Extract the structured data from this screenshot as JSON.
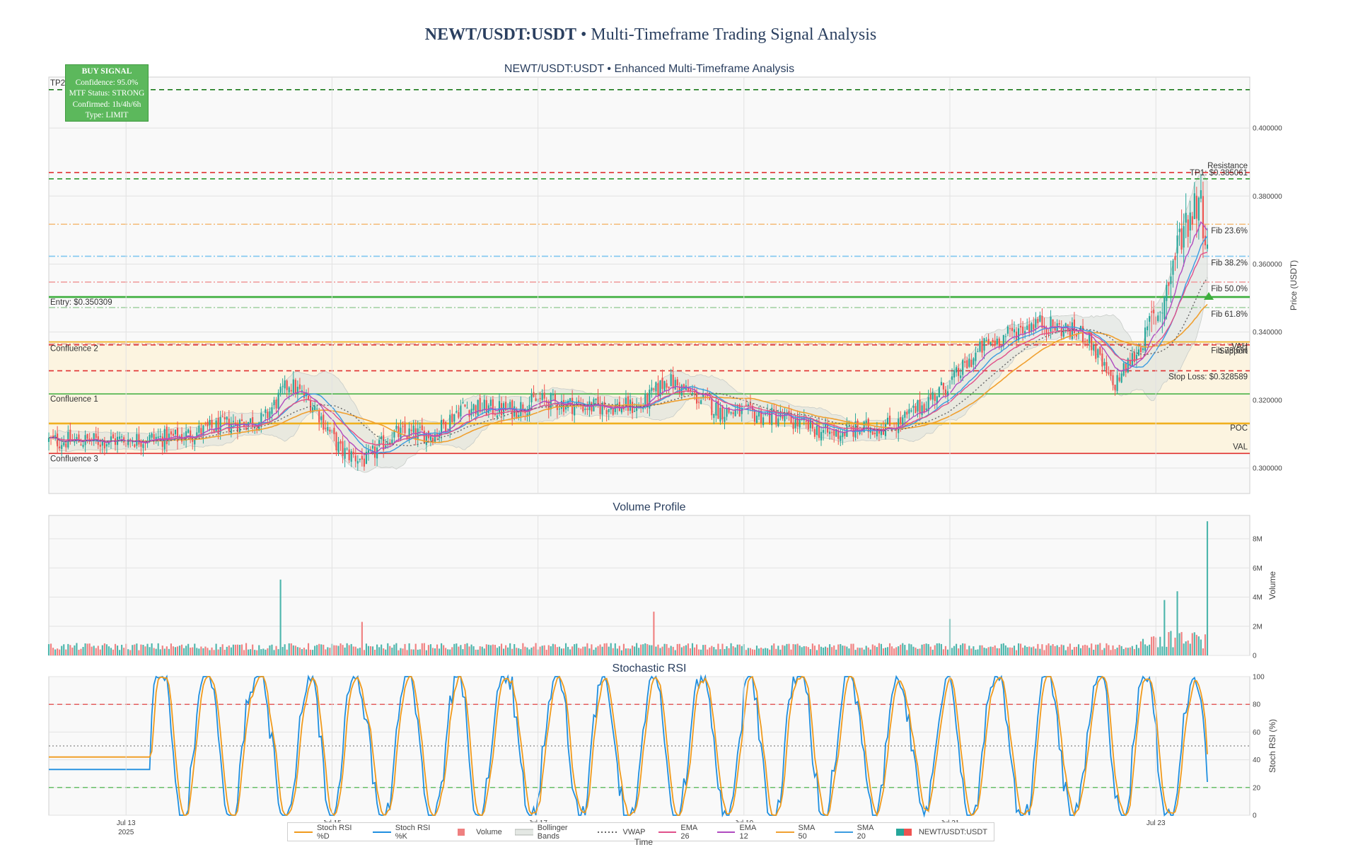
{
  "page": {
    "title_bold": "NEWT/USDT:USDT",
    "title_rest": " • Multi-Timeframe Trading Signal Analysis"
  },
  "signal_box": {
    "heading": "BUY SIGNAL",
    "lines": [
      "Confidence: 95.0%",
      "MTF Status: STRONG",
      "Confirmed: 1h/4h/6h",
      "Type: LIMIT"
    ]
  },
  "x_axis": {
    "title": "Time",
    "ticks": [
      "Jul 13",
      "Jul 15",
      "Jul 17",
      "Jul 19",
      "Jul 21",
      "Jul 23"
    ],
    "year_label": "2025"
  },
  "colors": {
    "up": "#26a69a",
    "down": "#ef5350",
    "sma20": "#3a9be0",
    "sma50": "#f0a030",
    "ema12": "#b04ac0",
    "ema26": "#e0508a",
    "vwap": "#666666",
    "bb": "#c8ccc8",
    "stoch_k": "#1f8fe0",
    "stoch_d": "#f09a1c"
  },
  "legend": [
    "Stoch RSI %D",
    "Stoch RSI %K",
    "Volume",
    "Bollinger Bands",
    "VWAP",
    "EMA 26",
    "EMA 12",
    "SMA 50",
    "SMA 20",
    "NEWT/USDT:USDT"
  ],
  "chart_data": [
    {
      "type": "candlestick",
      "title": "NEWT/USDT:USDT • Enhanced Multi-Timeframe Analysis",
      "ylabel": "Price (USDT)",
      "ylim": [
        0.2925,
        0.415
      ],
      "yticks": [
        "0.300000",
        "0.320000",
        "0.340000",
        "0.360000",
        "0.380000",
        "0.400000"
      ],
      "x_range": [
        "2025-07-12 06:00",
        "2025-07-23 12:00"
      ],
      "price_path": [
        [
          "2025-07-12 06:00",
          0.308
        ],
        [
          "2025-07-12 18:00",
          0.308
        ],
        [
          "2025-07-13 12:00",
          0.309
        ],
        [
          "2025-07-14 00:00",
          0.313
        ],
        [
          "2025-07-14 08:00",
          0.314
        ],
        [
          "2025-07-14 14:00",
          0.325
        ],
        [
          "2025-07-14 20:00",
          0.318
        ],
        [
          "2025-07-15 02:00",
          0.305
        ],
        [
          "2025-07-15 08:00",
          0.302
        ],
        [
          "2025-07-15 14:00",
          0.31
        ],
        [
          "2025-07-16 00:00",
          0.31
        ],
        [
          "2025-07-16 06:00",
          0.318
        ],
        [
          "2025-07-16 18:00",
          0.317
        ],
        [
          "2025-07-17 00:00",
          0.32
        ],
        [
          "2025-07-17 12:00",
          0.318
        ],
        [
          "2025-07-18 00:00",
          0.318
        ],
        [
          "2025-07-18 06:00",
          0.326
        ],
        [
          "2025-07-18 18:00",
          0.317
        ],
        [
          "2025-07-19 08:00",
          0.315
        ],
        [
          "2025-07-19 20:00",
          0.31
        ],
        [
          "2025-07-20 12:00",
          0.313
        ],
        [
          "2025-07-21 00:00",
          0.325
        ],
        [
          "2025-07-21 08:00",
          0.336
        ],
        [
          "2025-07-21 20:00",
          0.343
        ],
        [
          "2025-07-22 08:00",
          0.339
        ],
        [
          "2025-07-22 14:00",
          0.324
        ],
        [
          "2025-07-22 20:00",
          0.335
        ],
        [
          "2025-07-23 02:00",
          0.35
        ],
        [
          "2025-07-23 06:00",
          0.37
        ],
        [
          "2025-07-23 10:00",
          0.38
        ],
        [
          "2025-07-23 12:00",
          0.368
        ]
      ],
      "levels": [
        {
          "name": "TP2",
          "value": 0.4113,
          "color": "#1a7a1a",
          "style": "dash"
        },
        {
          "name": "Resistance",
          "value": 0.3869,
          "color": "#e03030",
          "style": "dash"
        },
        {
          "name": "TP1: $0.385061",
          "value": 0.385061,
          "color": "#2a9a2a",
          "style": "dash"
        },
        {
          "name": "Fib 23.6%",
          "value": 0.3717,
          "color": "#f5c080",
          "style": "dashdot"
        },
        {
          "name": "Fib 38.2%",
          "value": 0.3623,
          "color": "#80c8f0",
          "style": "dashdot"
        },
        {
          "name": "Fib 50.0%",
          "value": 0.3547,
          "color": "#f0a0a0",
          "style": "dashdot"
        },
        {
          "name": "Entry: $0.350309",
          "value": 0.350309,
          "color": "#3cae3c",
          "style": "solid"
        },
        {
          "name": "Fib 61.8%",
          "value": 0.3472,
          "color": "#a0d0a0",
          "style": "dashdot"
        },
        {
          "name": "Fib 78.6%",
          "value": 0.3365,
          "color": "#e0a0a0",
          "style": "dashdot"
        },
        {
          "name": "VAH",
          "value": 0.3371,
          "color": "#f0b020",
          "style": "solid"
        },
        {
          "name": "Support",
          "value": 0.3362,
          "color": "#e03030",
          "style": "dash"
        },
        {
          "name": "Stop Loss: $0.328589",
          "value": 0.328589,
          "color": "#e03030",
          "style": "dash"
        },
        {
          "name": "Confluence 1",
          "value": 0.3218,
          "color": "#3cae3c",
          "style": "solid"
        },
        {
          "name": "POC",
          "value": 0.3131,
          "color": "#f0b020",
          "style": "solid"
        },
        {
          "name": "VAL",
          "value": 0.3043,
          "color": "#e03030",
          "style": "solid"
        }
      ],
      "zone_labels": [
        "Confluence 2",
        "Confluence 3"
      ]
    },
    {
      "type": "bar",
      "title": "Volume Profile",
      "ylabel": "Volume",
      "ylim": [
        0,
        9600000
      ],
      "yticks": [
        "0",
        "2M",
        "4M",
        "6M",
        "8M"
      ],
      "spikes": [
        [
          "2025-07-14 12:00",
          5200000
        ],
        [
          "2025-07-15 07:00",
          2300000
        ],
        [
          "2025-07-18 03:00",
          3000000
        ],
        [
          "2025-07-21 00:00",
          2500000
        ],
        [
          "2025-07-23 02:00",
          3800000
        ],
        [
          "2025-07-23 05:00",
          4400000
        ],
        [
          "2025-07-23 12:00",
          9200000
        ]
      ]
    },
    {
      "type": "line",
      "title": "Stochastic RSI",
      "ylabel": "Stoch RSI (%)",
      "ylim": [
        0,
        100
      ],
      "yticks": [
        "0",
        "20",
        "40",
        "60",
        "80",
        "100"
      ],
      "reference_lines": [
        20,
        50,
        80
      ],
      "series": [
        {
          "name": "Stoch RSI %K",
          "start": 33,
          "end": 24
        },
        {
          "name": "Stoch RSI %D",
          "start": 42,
          "end": 44
        }
      ]
    }
  ]
}
